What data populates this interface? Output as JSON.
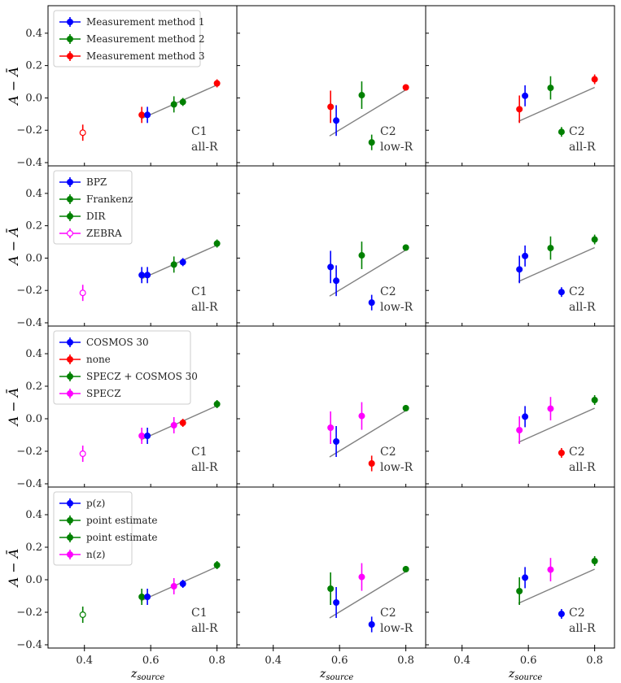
{
  "chart_data": {
    "type": "scatter",
    "ylabel": "A − Ā",
    "xlabel": "z",
    "xlabel_sub": "source",
    "xlim": [
      0.3,
      0.85
    ],
    "ylim": [
      -0.4,
      0.55
    ],
    "xticks": [
      "0.4",
      "0.6",
      "0.8"
    ],
    "xtick_values": [
      0.4,
      0.6,
      0.8
    ],
    "yticks": [
      "−0.4",
      "−0.2",
      "0.0",
      "0.2",
      "0.4"
    ],
    "ytick_values": [
      -0.4,
      -0.2,
      0.0,
      0.2,
      0.4
    ],
    "columns": [
      {
        "label1": "C1",
        "label2": "all-R",
        "line": [
          [
            0.57,
            -0.13
          ],
          [
            0.8,
            0.08
          ]
        ]
      },
      {
        "label1": "C2",
        "label2": "low-R",
        "line": [
          [
            0.57,
            -0.235
          ],
          [
            0.8,
            0.05
          ]
        ]
      },
      {
        "label1": "C2",
        "label2": "all-R",
        "line": [
          [
            0.57,
            -0.145
          ],
          [
            0.8,
            0.065
          ]
        ]
      }
    ],
    "rows": [
      {
        "legend": [
          {
            "label": "Measurement method 1",
            "color": "#0000ff",
            "open": false
          },
          {
            "label": "Measurement method 2",
            "color": "#008000",
            "open": false
          },
          {
            "label": "Measurement method 3",
            "color": "#ff0000",
            "open": false
          }
        ],
        "panels": [
          [
            {
              "x": 0.395,
              "y": -0.215,
              "err": 0.05,
              "color": "#ff0000",
              "open": true
            },
            {
              "x": 0.573,
              "y": -0.105,
              "err": 0.05,
              "color": "#ff0000",
              "open": false
            },
            {
              "x": 0.59,
              "y": -0.105,
              "err": 0.05,
              "color": "#0000ff",
              "open": false
            },
            {
              "x": 0.67,
              "y": -0.04,
              "err": 0.05,
              "color": "#008000",
              "open": false
            },
            {
              "x": 0.697,
              "y": -0.025,
              "err": 0.025,
              "color": "#008000",
              "open": false
            },
            {
              "x": 0.8,
              "y": 0.09,
              "err": 0.025,
              "color": "#ff0000",
              "open": false
            }
          ],
          [
            {
              "x": 0.573,
              "y": -0.055,
              "err": 0.1,
              "color": "#ff0000",
              "open": false
            },
            {
              "x": 0.59,
              "y": -0.14,
              "err": 0.095,
              "color": "#0000ff",
              "open": false
            },
            {
              "x": 0.667,
              "y": 0.017,
              "err": 0.085,
              "color": "#008000",
              "open": false
            },
            {
              "x": 0.697,
              "y": -0.275,
              "err": 0.048,
              "color": "#008000",
              "open": false
            },
            {
              "x": 0.8,
              "y": 0.065,
              "err": 0.02,
              "color": "#ff0000",
              "open": false
            }
          ],
          [
            {
              "x": 0.573,
              "y": -0.07,
              "err": 0.085,
              "color": "#ff0000",
              "open": false
            },
            {
              "x": 0.59,
              "y": 0.013,
              "err": 0.065,
              "color": "#0000ff",
              "open": false
            },
            {
              "x": 0.667,
              "y": 0.062,
              "err": 0.072,
              "color": "#008000",
              "open": false
            },
            {
              "x": 0.7,
              "y": -0.21,
              "err": 0.03,
              "color": "#008000",
              "open": false
            },
            {
              "x": 0.8,
              "y": 0.115,
              "err": 0.03,
              "color": "#ff0000",
              "open": false
            }
          ]
        ]
      },
      {
        "legend": [
          {
            "label": "BPZ",
            "color": "#0000ff",
            "open": false
          },
          {
            "label": "Frankenz",
            "color": "#008000",
            "open": false
          },
          {
            "label": "DIR",
            "color": "#008000",
            "open": false
          },
          {
            "label": "ZEBRA",
            "color": "#ff00ff",
            "open": true
          }
        ],
        "panels": [
          [
            {
              "x": 0.395,
              "y": -0.215,
              "err": 0.05,
              "color": "#ff00ff",
              "open": true
            },
            {
              "x": 0.573,
              "y": -0.105,
              "err": 0.05,
              "color": "#0000ff",
              "open": false
            },
            {
              "x": 0.59,
              "y": -0.105,
              "err": 0.05,
              "color": "#0000ff",
              "open": false
            },
            {
              "x": 0.67,
              "y": -0.04,
              "err": 0.05,
              "color": "#008000",
              "open": false
            },
            {
              "x": 0.697,
              "y": -0.025,
              "err": 0.025,
              "color": "#0000ff",
              "open": false
            },
            {
              "x": 0.8,
              "y": 0.09,
              "err": 0.025,
              "color": "#008000",
              "open": false
            }
          ],
          [
            {
              "x": 0.573,
              "y": -0.055,
              "err": 0.1,
              "color": "#0000ff",
              "open": false
            },
            {
              "x": 0.59,
              "y": -0.14,
              "err": 0.095,
              "color": "#0000ff",
              "open": false
            },
            {
              "x": 0.667,
              "y": 0.017,
              "err": 0.085,
              "color": "#008000",
              "open": false
            },
            {
              "x": 0.697,
              "y": -0.275,
              "err": 0.048,
              "color": "#0000ff",
              "open": false
            },
            {
              "x": 0.8,
              "y": 0.065,
              "err": 0.02,
              "color": "#008000",
              "open": false
            }
          ],
          [
            {
              "x": 0.573,
              "y": -0.07,
              "err": 0.085,
              "color": "#0000ff",
              "open": false
            },
            {
              "x": 0.59,
              "y": 0.013,
              "err": 0.065,
              "color": "#0000ff",
              "open": false
            },
            {
              "x": 0.667,
              "y": 0.062,
              "err": 0.072,
              "color": "#008000",
              "open": false
            },
            {
              "x": 0.7,
              "y": -0.21,
              "err": 0.03,
              "color": "#0000ff",
              "open": false
            },
            {
              "x": 0.8,
              "y": 0.115,
              "err": 0.03,
              "color": "#008000",
              "open": false
            }
          ]
        ]
      },
      {
        "legend": [
          {
            "label": "COSMOS 30",
            "color": "#0000ff",
            "open": false
          },
          {
            "label": "none",
            "color": "#ff0000",
            "open": false
          },
          {
            "label": "SPECZ + COSMOS 30",
            "color": "#008000",
            "open": false
          },
          {
            "label": "SPECZ",
            "color": "#ff00ff",
            "open": false
          }
        ],
        "panels": [
          [
            {
              "x": 0.395,
              "y": -0.215,
              "err": 0.05,
              "color": "#ff00ff",
              "open": true
            },
            {
              "x": 0.573,
              "y": -0.105,
              "err": 0.05,
              "color": "#ff00ff",
              "open": false
            },
            {
              "x": 0.59,
              "y": -0.105,
              "err": 0.05,
              "color": "#0000ff",
              "open": false
            },
            {
              "x": 0.67,
              "y": -0.04,
              "err": 0.05,
              "color": "#ff00ff",
              "open": false
            },
            {
              "x": 0.697,
              "y": -0.025,
              "err": 0.025,
              "color": "#ff0000",
              "open": false
            },
            {
              "x": 0.8,
              "y": 0.09,
              "err": 0.025,
              "color": "#008000",
              "open": false
            }
          ],
          [
            {
              "x": 0.573,
              "y": -0.055,
              "err": 0.1,
              "color": "#ff00ff",
              "open": false
            },
            {
              "x": 0.59,
              "y": -0.14,
              "err": 0.095,
              "color": "#0000ff",
              "open": false
            },
            {
              "x": 0.667,
              "y": 0.017,
              "err": 0.085,
              "color": "#ff00ff",
              "open": false
            },
            {
              "x": 0.697,
              "y": -0.275,
              "err": 0.048,
              "color": "#ff0000",
              "open": false
            },
            {
              "x": 0.8,
              "y": 0.065,
              "err": 0.02,
              "color": "#008000",
              "open": false
            }
          ],
          [
            {
              "x": 0.573,
              "y": -0.07,
              "err": 0.085,
              "color": "#ff00ff",
              "open": false
            },
            {
              "x": 0.59,
              "y": 0.013,
              "err": 0.065,
              "color": "#0000ff",
              "open": false
            },
            {
              "x": 0.667,
              "y": 0.062,
              "err": 0.072,
              "color": "#ff00ff",
              "open": false
            },
            {
              "x": 0.7,
              "y": -0.21,
              "err": 0.03,
              "color": "#ff0000",
              "open": false
            },
            {
              "x": 0.8,
              "y": 0.115,
              "err": 0.03,
              "color": "#008000",
              "open": false
            }
          ]
        ]
      },
      {
        "legend": [
          {
            "label": "p(z)",
            "color": "#0000ff",
            "open": false
          },
          {
            "label": "point estimate",
            "color": "#008000",
            "open": false
          },
          {
            "label": "point estimate",
            "color": "#008000",
            "open": false
          },
          {
            "label": "n(z)",
            "color": "#ff00ff",
            "open": false
          }
        ],
        "panels": [
          [
            {
              "x": 0.395,
              "y": -0.215,
              "err": 0.05,
              "color": "#008000",
              "open": true
            },
            {
              "x": 0.573,
              "y": -0.105,
              "err": 0.05,
              "color": "#008000",
              "open": false
            },
            {
              "x": 0.59,
              "y": -0.105,
              "err": 0.05,
              "color": "#0000ff",
              "open": false
            },
            {
              "x": 0.67,
              "y": -0.04,
              "err": 0.05,
              "color": "#ff00ff",
              "open": false
            },
            {
              "x": 0.697,
              "y": -0.025,
              "err": 0.025,
              "color": "#0000ff",
              "open": false
            },
            {
              "x": 0.8,
              "y": 0.09,
              "err": 0.025,
              "color": "#008000",
              "open": false
            }
          ],
          [
            {
              "x": 0.573,
              "y": -0.055,
              "err": 0.1,
              "color": "#008000",
              "open": false
            },
            {
              "x": 0.59,
              "y": -0.14,
              "err": 0.095,
              "color": "#0000ff",
              "open": false
            },
            {
              "x": 0.667,
              "y": 0.017,
              "err": 0.085,
              "color": "#ff00ff",
              "open": false
            },
            {
              "x": 0.697,
              "y": -0.275,
              "err": 0.048,
              "color": "#0000ff",
              "open": false
            },
            {
              "x": 0.8,
              "y": 0.065,
              "err": 0.02,
              "color": "#008000",
              "open": false
            }
          ],
          [
            {
              "x": 0.573,
              "y": -0.07,
              "err": 0.085,
              "color": "#008000",
              "open": false
            },
            {
              "x": 0.59,
              "y": 0.013,
              "err": 0.065,
              "color": "#0000ff",
              "open": false
            },
            {
              "x": 0.667,
              "y": 0.062,
              "err": 0.072,
              "color": "#ff00ff",
              "open": false
            },
            {
              "x": 0.7,
              "y": -0.21,
              "err": 0.03,
              "color": "#0000ff",
              "open": false
            },
            {
              "x": 0.8,
              "y": 0.115,
              "err": 0.03,
              "color": "#008000",
              "open": false
            }
          ]
        ]
      }
    ]
  }
}
